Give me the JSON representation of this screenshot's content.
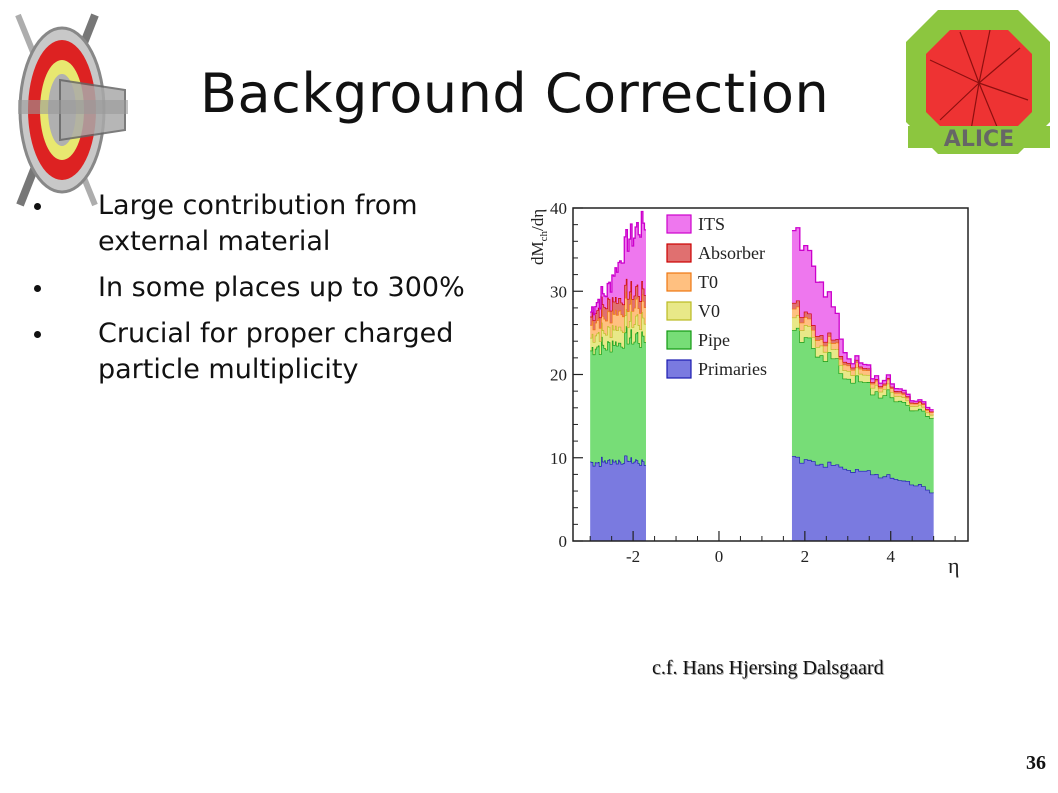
{
  "slide": {
    "title": "Background Correction",
    "bullets": [
      "Large contribution from external material",
      "In some places up to 300%",
      "Crucial for proper charged particle multiplicity"
    ],
    "credit": "c.f. Hans Hjersing Dalsgaard",
    "page_number": "36",
    "logo_text": "ALICE"
  },
  "chart_data": {
    "type": "area",
    "stacked": true,
    "ylabel": "dM",
    "ylabel_sub": "ch",
    "ylabel_tail": "/dη",
    "xlabel": "η",
    "xlim": [
      -3.4,
      5.8
    ],
    "ylim": [
      0,
      40
    ],
    "x_ticks": [
      "-2",
      "0",
      "2",
      "4"
    ],
    "x_tick_values": [
      -2,
      0,
      2,
      4
    ],
    "y_ticks": [
      "0",
      "10",
      "20",
      "30",
      "40"
    ],
    "y_tick_values": [
      0,
      10,
      20,
      30,
      40
    ],
    "legend_position": "top-center",
    "regions": [
      [
        -3.0,
        -1.7
      ],
      [
        1.7,
        5.0
      ]
    ],
    "series": [
      {
        "name": "Primaries",
        "color": "#7a7ae0",
        "line": "#1a1ab0",
        "values": [
          [
            -3.0,
            9.5
          ],
          [
            -2.6,
            9.6
          ],
          [
            -2.2,
            9.8
          ],
          [
            -1.8,
            9.5
          ],
          [
            1.8,
            9.8
          ],
          [
            2.4,
            9.3
          ],
          [
            3.0,
            8.8
          ],
          [
            3.6,
            8.0
          ],
          [
            4.2,
            7.5
          ],
          [
            4.6,
            6.8
          ],
          [
            5.0,
            5.8
          ]
        ]
      },
      {
        "name": "Pipe",
        "color": "#77dd77",
        "line": "#119911",
        "values": [
          [
            -3.0,
            13.5
          ],
          [
            -2.6,
            14.0
          ],
          [
            -2.2,
            14.5
          ],
          [
            -1.8,
            15.0
          ],
          [
            1.8,
            15.0
          ],
          [
            2.4,
            13.5
          ],
          [
            3.0,
            11.0
          ],
          [
            3.6,
            10.0
          ],
          [
            4.2,
            9.5
          ],
          [
            4.6,
            9.0
          ],
          [
            5.0,
            9.0
          ]
        ]
      },
      {
        "name": "V0",
        "color": "#e8e888",
        "line": "#bbbb22",
        "values": [
          [
            -3.0,
            1.5
          ],
          [
            -2.6,
            1.8
          ],
          [
            -2.2,
            2.0
          ],
          [
            -1.8,
            2.2
          ],
          [
            1.8,
            1.5
          ],
          [
            2.4,
            1.2
          ],
          [
            3.0,
            1.0
          ],
          [
            3.6,
            0.8
          ],
          [
            4.2,
            0.6
          ],
          [
            4.6,
            0.5
          ],
          [
            5.0,
            0.4
          ]
        ]
      },
      {
        "name": "T0",
        "color": "#ffc080",
        "line": "#ee7711",
        "values": [
          [
            -3.0,
            1.5
          ],
          [
            -2.6,
            1.8
          ],
          [
            -2.2,
            2.0
          ],
          [
            -1.8,
            2.0
          ],
          [
            1.8,
            1.0
          ],
          [
            2.4,
            0.8
          ],
          [
            3.0,
            0.7
          ],
          [
            3.6,
            0.5
          ],
          [
            4.2,
            0.4
          ],
          [
            4.6,
            0.3
          ],
          [
            5.0,
            0.3
          ]
        ]
      },
      {
        "name": "Absorber",
        "color": "#e07070",
        "line": "#cc0000",
        "values": [
          [
            -3.0,
            1.0
          ],
          [
            -2.6,
            1.5
          ],
          [
            -2.2,
            1.5
          ],
          [
            -1.8,
            1.5
          ],
          [
            1.8,
            0.7
          ],
          [
            2.4,
            0.5
          ],
          [
            3.0,
            0.3
          ],
          [
            3.6,
            0.2
          ],
          [
            4.2,
            0.2
          ],
          [
            4.6,
            0.1
          ],
          [
            5.0,
            0.1
          ]
        ]
      },
      {
        "name": "ITS",
        "color": "#ee77ee",
        "line": "#cc00cc",
        "values": [
          [
            -3.0,
            0.5
          ],
          [
            -2.6,
            1.5
          ],
          [
            -2.2,
            5.5
          ],
          [
            -1.8,
            8.0
          ],
          [
            1.8,
            8.5
          ],
          [
            2.4,
            6.5
          ],
          [
            3.0,
            0.5
          ],
          [
            3.6,
            0.4
          ],
          [
            4.2,
            0.3
          ],
          [
            4.6,
            0.2
          ],
          [
            5.0,
            0.2
          ]
        ]
      }
    ]
  }
}
